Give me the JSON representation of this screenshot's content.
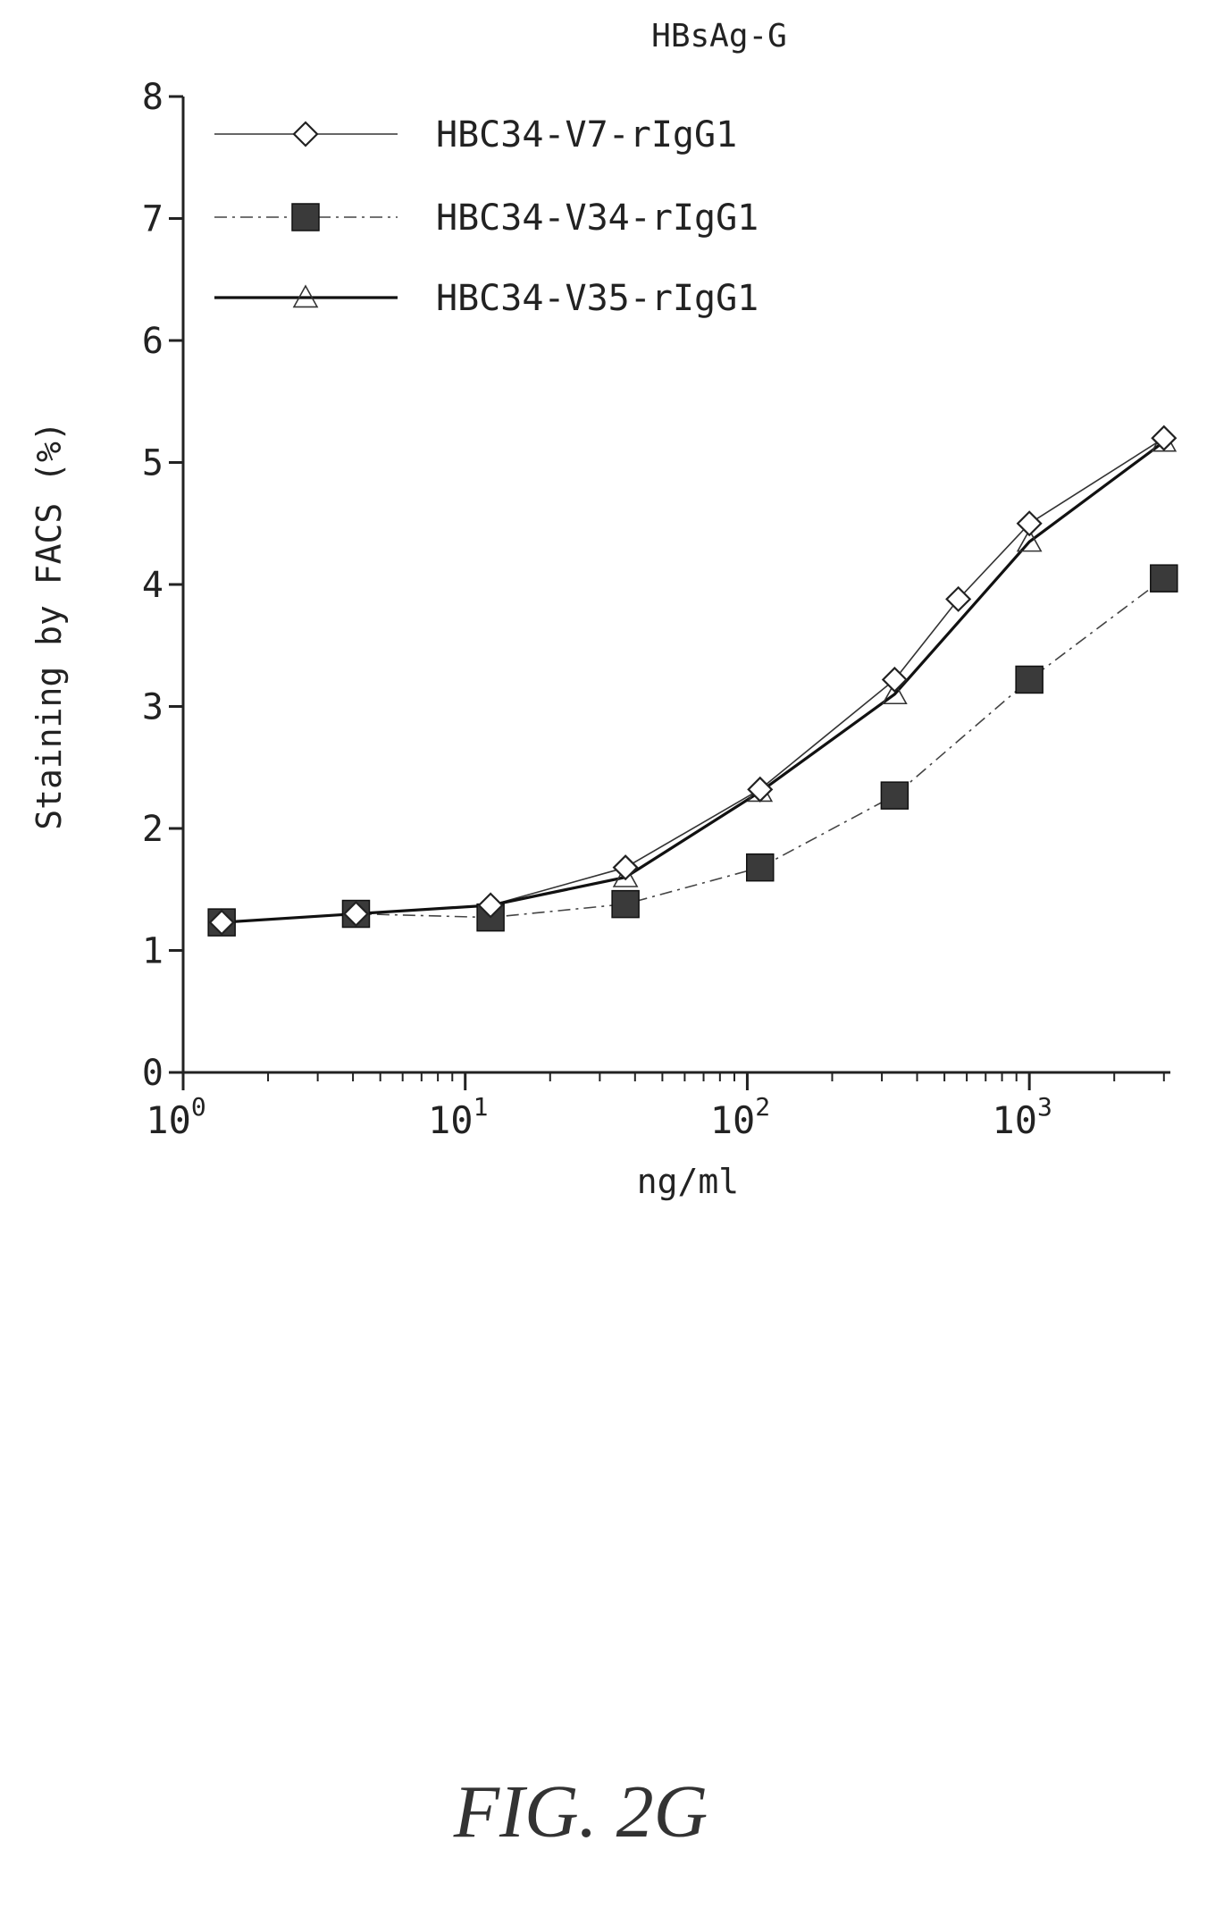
{
  "figure_label": "FIG. 2G",
  "chart_data": {
    "type": "line",
    "title": "HBsAg-G",
    "xlabel": "ng/ml",
    "ylabel": "Staining by FACS (%)",
    "x_scale": "log",
    "xlim": [
      1,
      3162
    ],
    "ylim": [
      0,
      8
    ],
    "x_ticks": [
      {
        "value": 1,
        "base": "10",
        "exp": "0"
      },
      {
        "value": 10,
        "base": "10",
        "exp": "1"
      },
      {
        "value": 100,
        "base": "10",
        "exp": "2"
      },
      {
        "value": 1000,
        "base": "10",
        "exp": "3"
      }
    ],
    "y_ticks": [
      "0",
      "1",
      "2",
      "3",
      "4",
      "5",
      "6",
      "7",
      "8"
    ],
    "legend_position": "top-left",
    "grid": false,
    "series": [
      {
        "name": "HBC34-V7-rIgG1",
        "marker": "diamond-open",
        "line": "thin-solid",
        "x": [
          1.37,
          4.1,
          12.3,
          37,
          111,
          333,
          560,
          1000,
          3000
        ],
        "y": [
          1.23,
          1.3,
          1.37,
          1.68,
          2.32,
          3.22,
          3.88,
          4.5,
          5.2
        ]
      },
      {
        "name": "HBC34-V34-rIgG1",
        "marker": "square-filled",
        "line": "dash-dot",
        "x": [
          1.37,
          4.1,
          12.3,
          37,
          111,
          333,
          1000,
          3000
        ],
        "y": [
          1.23,
          1.3,
          1.27,
          1.38,
          1.68,
          2.27,
          3.22,
          4.05
        ]
      },
      {
        "name": "HBC34-V35-rIgG1",
        "marker": "triangle-open",
        "line": "thick-solid",
        "x": [
          1.37,
          4.1,
          12.3,
          37,
          111,
          333,
          1000,
          3000
        ],
        "y": [
          1.23,
          1.3,
          1.37,
          1.6,
          2.3,
          3.1,
          4.35,
          5.17
        ]
      }
    ]
  }
}
